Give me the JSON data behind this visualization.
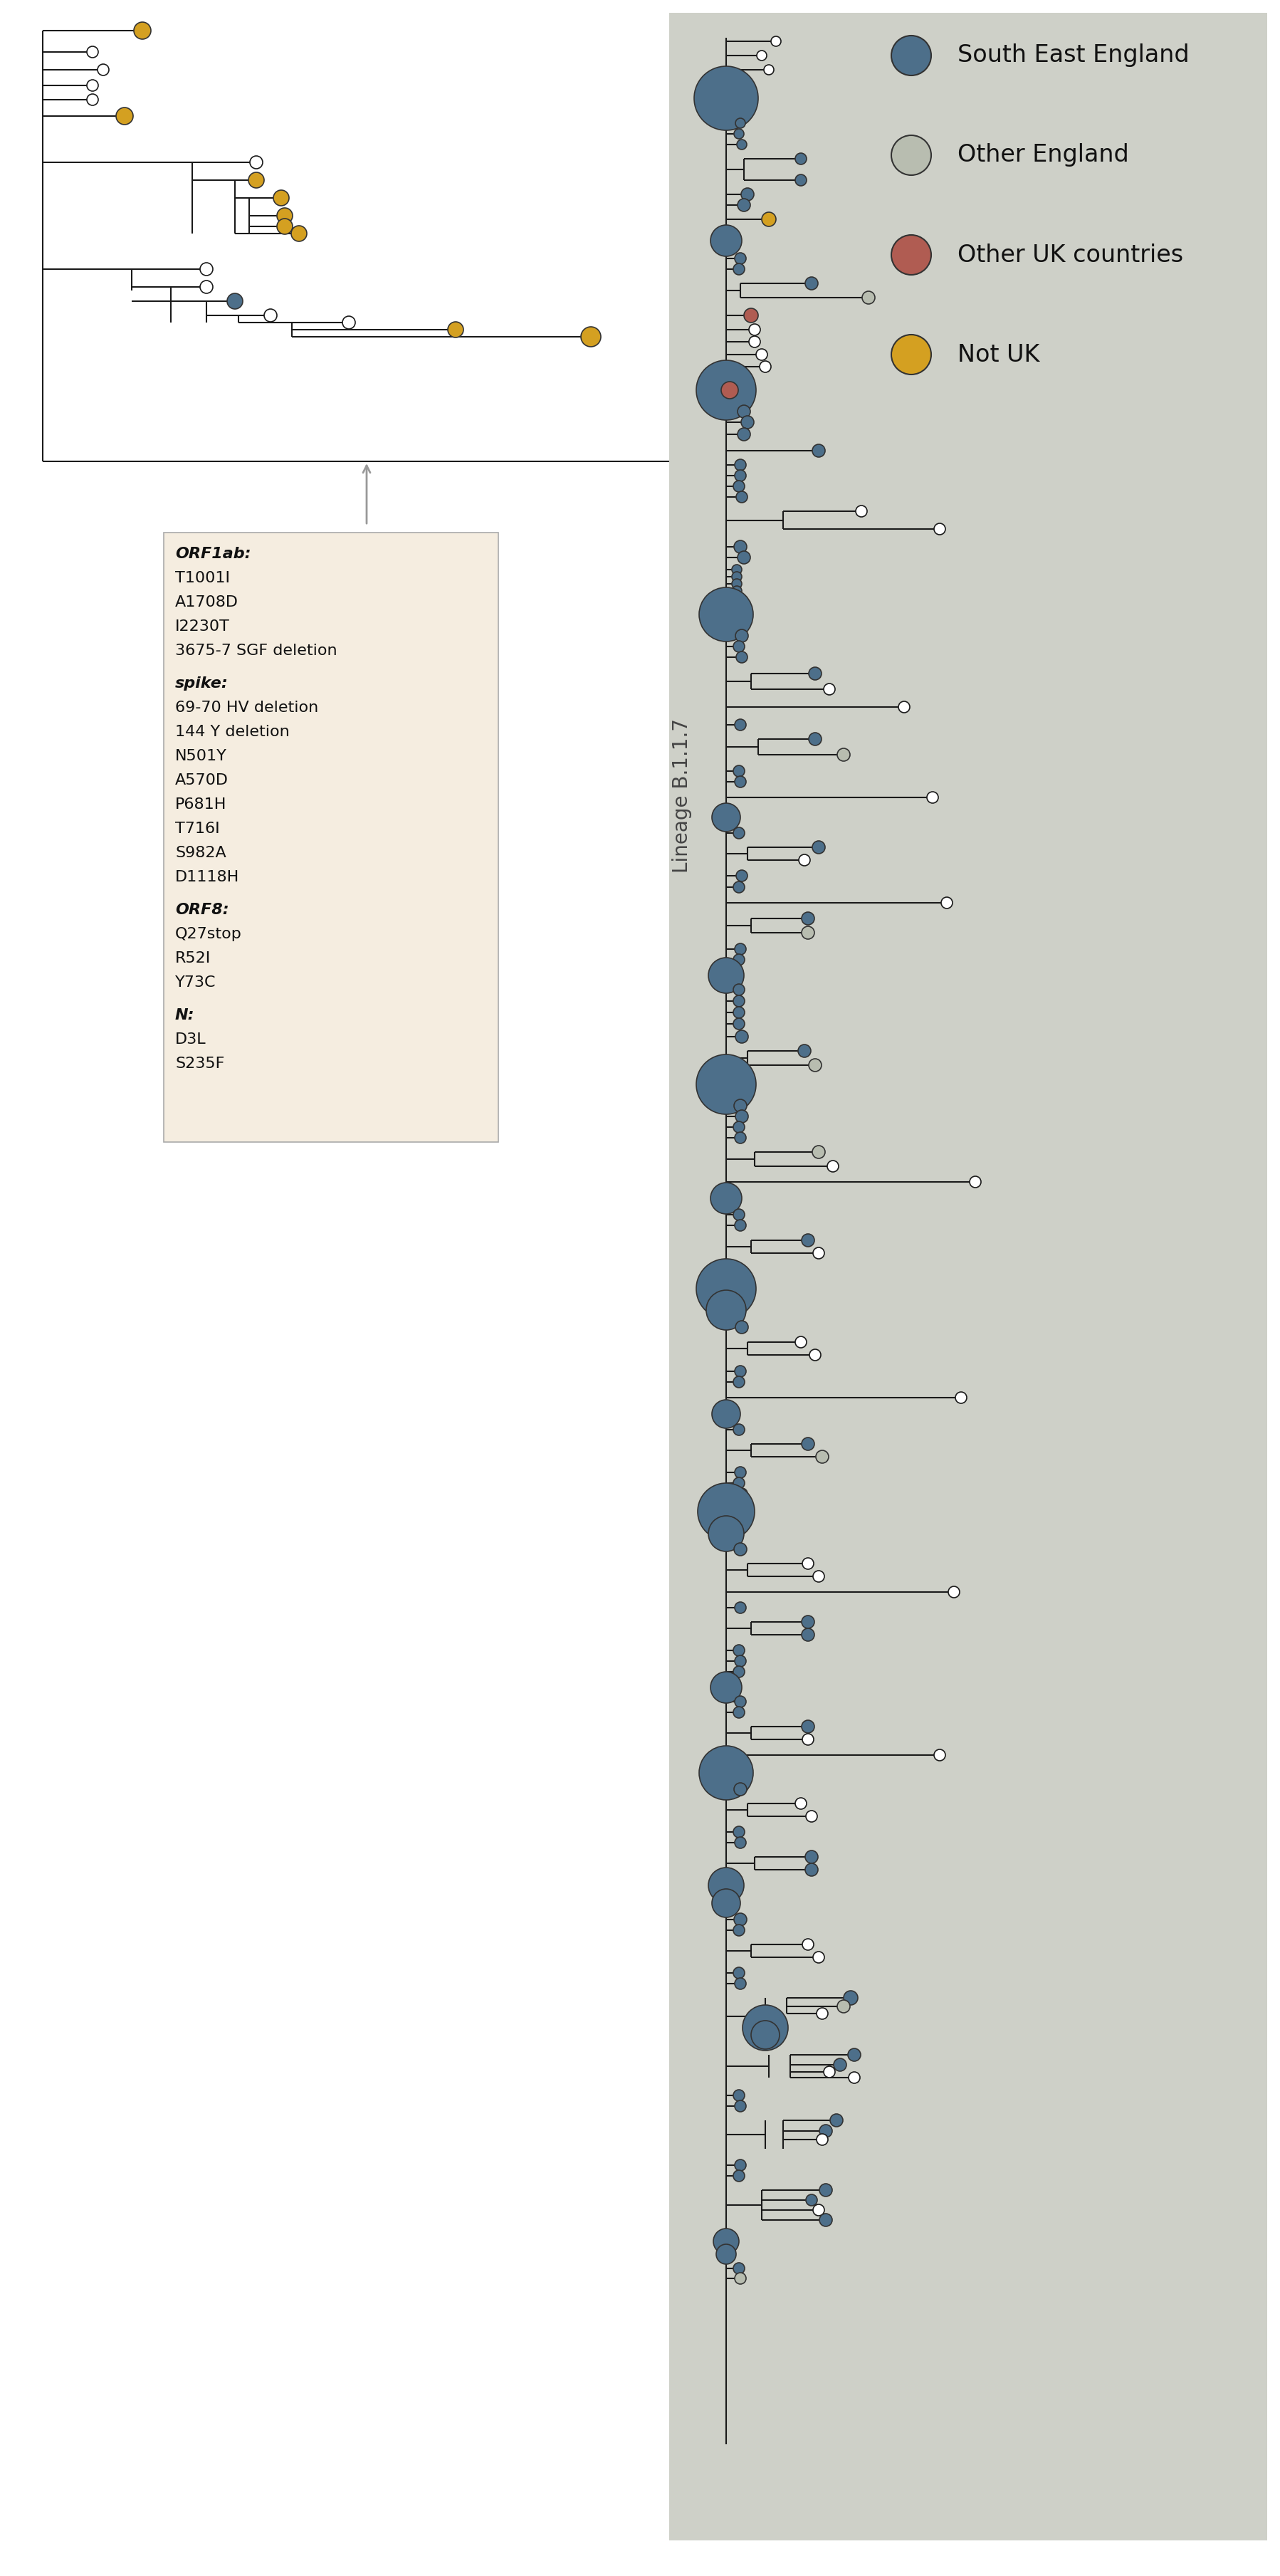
{
  "colors": {
    "south_east_england": "#4d6f8a",
    "other_england": "#b8bdb0",
    "other_uk": "#b05c52",
    "not_uk": "#d4a021",
    "tree_line": "#1a1a1a",
    "background_right": "#ced0c8",
    "box_bg": "#f5ede0",
    "arrow_color": "#999999"
  },
  "legend": {
    "labels": [
      "South East England",
      "Other England",
      "Other UK countries",
      "Not UK"
    ],
    "colors": [
      "#4d6f8a",
      "#b8bdb0",
      "#b05c52",
      "#d4a021"
    ]
  },
  "annotation_box": {
    "sections": [
      {
        "title": "ORF1ab:",
        "items": [
          "T1001I",
          "A1708D",
          "I2230T",
          "3675-7 SGF deletion"
        ]
      },
      {
        "title": "spike:",
        "items": [
          "69-70 HV deletion",
          "144 Y deletion",
          "N501Y",
          "A570D",
          "P681H",
          "T716I",
          "S982A",
          "D1118H"
        ]
      },
      {
        "title": "ORF8:",
        "items": [
          "Q27stop",
          "R52I",
          "Y73C"
        ]
      },
      {
        "title": "N:",
        "items": [
          "D3L",
          "S235F"
        ]
      }
    ]
  },
  "lineage_label": "Lineage B.1.1.7"
}
